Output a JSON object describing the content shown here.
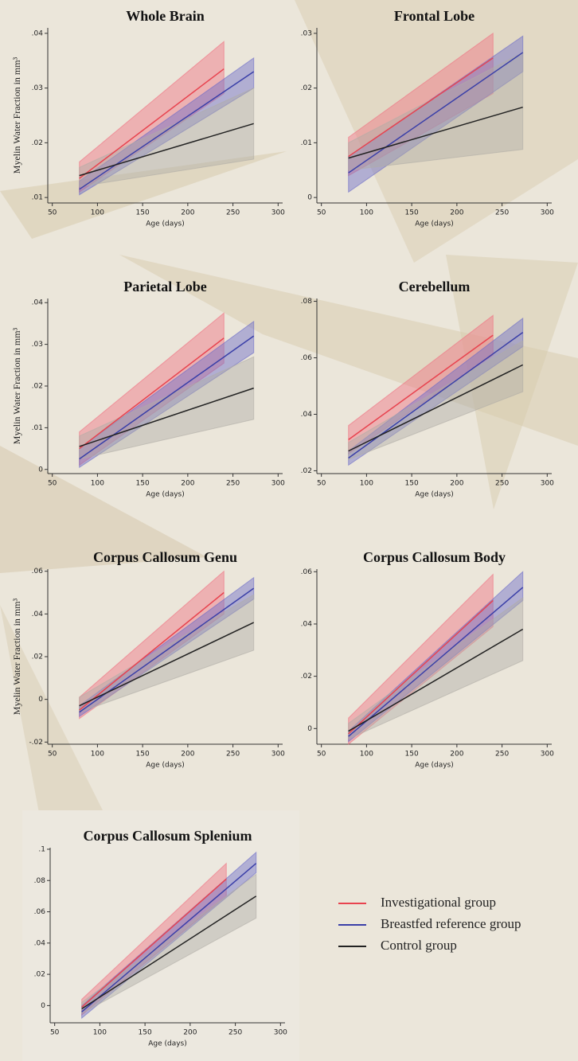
{
  "chart_data": [
    {
      "type": "line",
      "title": "Whole Brain",
      "ylabel": "Myelin Water Fraction in mm³",
      "xlabel": "Age (days)",
      "xlim": [
        45,
        305
      ],
      "xticks": [
        50,
        100,
        150,
        200,
        250,
        300
      ],
      "ylim": [
        0.009,
        0.041
      ],
      "yticks": [
        {
          "value": 0.01,
          "label": ".01"
        },
        {
          "value": 0.02,
          "label": ".02"
        },
        {
          "value": 0.03,
          "label": ".03"
        },
        {
          "value": 0.04,
          "label": ".04"
        }
      ],
      "series": [
        {
          "color": "#e8434f",
          "band_color": "#f07080",
          "x": [
            80,
            240
          ],
          "values": [
            0.0135,
            0.0335
          ],
          "lower": [
            0.011,
            0.029
          ],
          "upper": [
            0.0165,
            0.0385
          ]
        },
        {
          "color": "#3a3fa8",
          "band_color": "#6a6ac8",
          "x": [
            80,
            273
          ],
          "values": [
            0.0115,
            0.033
          ],
          "lower": [
            0.0105,
            0.03
          ],
          "upper": [
            0.013,
            0.0355
          ]
        },
        {
          "color": "#222222",
          "band_color": "#b0aea6",
          "x": [
            80,
            273
          ],
          "values": [
            0.014,
            0.0235
          ],
          "lower": [
            0.012,
            0.017
          ],
          "upper": [
            0.0155,
            0.03
          ]
        }
      ]
    },
    {
      "type": "line",
      "title": "Frontal Lobe",
      "xlabel": "Age (days)",
      "xlim": [
        45,
        305
      ],
      "xticks": [
        50,
        100,
        150,
        200,
        250,
        300
      ],
      "ylim": [
        -0.001,
        0.031
      ],
      "yticks": [
        0,
        {
          "value": 0.01,
          "label": ".01"
        },
        {
          "value": 0.02,
          "label": ".02"
        },
        {
          "value": 0.03,
          "label": ".03"
        }
      ],
      "series": [
        {
          "color": "#e8434f",
          "band_color": "#f07080",
          "x": [
            80,
            240
          ],
          "values": [
            0.0075,
            0.0255
          ],
          "lower": [
            0.004,
            0.019
          ],
          "upper": [
            0.011,
            0.03
          ]
        },
        {
          "color": "#3a3fa8",
          "band_color": "#6a6ac8",
          "x": [
            80,
            273
          ],
          "values": [
            0.0045,
            0.0265
          ],
          "lower": [
            0.001,
            0.023
          ],
          "upper": [
            0.0075,
            0.0295
          ]
        },
        {
          "color": "#222222",
          "band_color": "#b0aea6",
          "x": [
            80,
            273
          ],
          "values": [
            0.0072,
            0.0165
          ],
          "lower": [
            0.005,
            0.0088
          ],
          "upper": [
            0.01,
            0.0265
          ]
        }
      ]
    },
    {
      "type": "line",
      "title": "Parietal Lobe",
      "ylabel": "Myelin Water Fraction in mm³",
      "xlabel": "Age (days)",
      "xlim": [
        45,
        305
      ],
      "xticks": [
        50,
        100,
        150,
        200,
        250,
        300
      ],
      "ylim": [
        -0.001,
        0.041
      ],
      "yticks": [
        0,
        {
          "value": 0.01,
          "label": ".01"
        },
        {
          "value": 0.02,
          "label": ".02"
        },
        {
          "value": 0.03,
          "label": ".03"
        },
        {
          "value": 0.04,
          "label": ".04"
        }
      ],
      "series": [
        {
          "color": "#e8434f",
          "band_color": "#f07080",
          "x": [
            80,
            240
          ],
          "values": [
            0.005,
            0.0315
          ],
          "lower": [
            0.001,
            0.0255
          ],
          "upper": [
            0.009,
            0.0375
          ]
        },
        {
          "color": "#3a3fa8",
          "band_color": "#6a6ac8",
          "x": [
            80,
            273
          ],
          "values": [
            0.0025,
            0.032
          ],
          "lower": [
            0.0005,
            0.028
          ],
          "upper": [
            0.005,
            0.0355
          ]
        },
        {
          "color": "#222222",
          "band_color": "#b0aea6",
          "x": [
            80,
            273
          ],
          "values": [
            0.0055,
            0.0195
          ],
          "lower": [
            0.0025,
            0.012
          ],
          "upper": [
            0.008,
            0.027
          ]
        }
      ]
    },
    {
      "type": "line",
      "title": "Cerebellum",
      "xlabel": "Age (days)",
      "xlim": [
        45,
        305
      ],
      "xticks": [
        50,
        100,
        150,
        200,
        250,
        300
      ],
      "ylim": [
        0.019,
        0.081
      ],
      "yticks": [
        {
          "value": 0.02,
          "label": ".02"
        },
        {
          "value": 0.04,
          "label": ".04"
        },
        {
          "value": 0.06,
          "label": ".06"
        },
        {
          "value": 0.08,
          "label": ".08"
        }
      ],
      "series": [
        {
          "color": "#e8434f",
          "band_color": "#f07080",
          "x": [
            80,
            240
          ],
          "values": [
            0.031,
            0.068
          ],
          "lower": [
            0.026,
            0.061
          ],
          "upper": [
            0.036,
            0.075
          ]
        },
        {
          "color": "#3a3fa8",
          "band_color": "#6a6ac8",
          "x": [
            80,
            273
          ],
          "values": [
            0.0245,
            0.069
          ],
          "lower": [
            0.022,
            0.064
          ],
          "upper": [
            0.027,
            0.074
          ]
        },
        {
          "color": "#222222",
          "band_color": "#b0aea6",
          "x": [
            80,
            273
          ],
          "values": [
            0.027,
            0.0575
          ],
          "lower": [
            0.024,
            0.048
          ],
          "upper": [
            0.03,
            0.066
          ]
        }
      ]
    },
    {
      "type": "line",
      "title": "Corpus Callosum Genu",
      "ylabel": "Myelin Water Fraction in mm³",
      "xlabel": "Age (days)",
      "xlim": [
        45,
        305
      ],
      "xticks": [
        50,
        100,
        150,
        200,
        250,
        300
      ],
      "ylim": [
        -0.021,
        0.061
      ],
      "yticks": [
        {
          "value": -0.02,
          "label": "-.02"
        },
        0,
        {
          "value": 0.02,
          "label": ".02"
        },
        {
          "value": 0.04,
          "label": ".04"
        },
        {
          "value": 0.06,
          "label": ".06"
        }
      ],
      "series": [
        {
          "color": "#e8434f",
          "band_color": "#f07080",
          "x": [
            80,
            240
          ],
          "values": [
            -0.005,
            0.05
          ],
          "lower": [
            -0.009,
            0.04
          ],
          "upper": [
            0.001,
            0.06
          ]
        },
        {
          "color": "#3a3fa8",
          "band_color": "#6a6ac8",
          "x": [
            80,
            273
          ],
          "values": [
            -0.006,
            0.052
          ],
          "lower": [
            -0.008,
            0.047
          ],
          "upper": [
            -0.003,
            0.057
          ]
        },
        {
          "color": "#222222",
          "band_color": "#b0aea6",
          "x": [
            80,
            273
          ],
          "values": [
            -0.003,
            0.036
          ],
          "lower": [
            -0.006,
            0.023
          ],
          "upper": [
            0.001,
            0.049
          ]
        }
      ]
    },
    {
      "type": "line",
      "title": "Corpus Callosum Body",
      "xlabel": "Age (days)",
      "xlim": [
        45,
        305
      ],
      "xticks": [
        50,
        100,
        150,
        200,
        250,
        300
      ],
      "ylim": [
        -0.006,
        0.061
      ],
      "yticks": [
        0,
        {
          "value": 0.02,
          "label": ".02"
        },
        {
          "value": 0.04,
          "label": ".04"
        },
        {
          "value": 0.06,
          "label": ".06"
        }
      ],
      "series": [
        {
          "color": "#e8434f",
          "band_color": "#f07080",
          "x": [
            80,
            240
          ],
          "values": [
            -0.002,
            0.049
          ],
          "lower": [
            -0.006,
            0.039
          ],
          "upper": [
            0.004,
            0.059
          ]
        },
        {
          "color": "#3a3fa8",
          "band_color": "#6a6ac8",
          "x": [
            80,
            273
          ],
          "values": [
            -0.003,
            0.054
          ],
          "lower": [
            -0.005,
            0.049
          ],
          "upper": [
            -0.001,
            0.06
          ]
        },
        {
          "color": "#222222",
          "band_color": "#b0aea6",
          "x": [
            80,
            273
          ],
          "values": [
            -0.001,
            0.038
          ],
          "lower": [
            -0.004,
            0.026
          ],
          "upper": [
            0.002,
            0.05
          ]
        }
      ]
    },
    {
      "type": "line",
      "title": "Corpus Callosum Splenium",
      "xlabel": "Age (days)",
      "xlim": [
        45,
        305
      ],
      "xticks": [
        50,
        100,
        150,
        200,
        250,
        300
      ],
      "ylim": [
        -0.011,
        0.101
      ],
      "yticks": [
        0,
        {
          "value": 0.02,
          "label": ".02"
        },
        {
          "value": 0.04,
          "label": ".04"
        },
        {
          "value": 0.06,
          "label": ".06"
        },
        {
          "value": 0.08,
          "label": ".08"
        },
        {
          "value": 0.1,
          "label": ".1"
        }
      ],
      "series": [
        {
          "name": "Investigational group",
          "color": "#e8434f",
          "band_color": "#f07080",
          "x": [
            80,
            240
          ],
          "values": [
            -0.001,
            0.081
          ],
          "lower": [
            -0.006,
            0.07
          ],
          "upper": [
            0.004,
            0.091
          ]
        },
        {
          "name": "Breastfed reference group",
          "color": "#3a3fa8",
          "band_color": "#6a6ac8",
          "x": [
            80,
            273
          ],
          "values": [
            -0.004,
            0.091
          ],
          "lower": [
            -0.008,
            0.085
          ],
          "upper": [
            0.0,
            0.098
          ]
        },
        {
          "name": "Control group",
          "color": "#222222",
          "band_color": "#b0aea6",
          "x": [
            80,
            273
          ],
          "values": [
            -0.002,
            0.07
          ],
          "lower": [
            -0.005,
            0.056
          ],
          "upper": [
            0.002,
            0.084
          ]
        }
      ]
    }
  ]
}
